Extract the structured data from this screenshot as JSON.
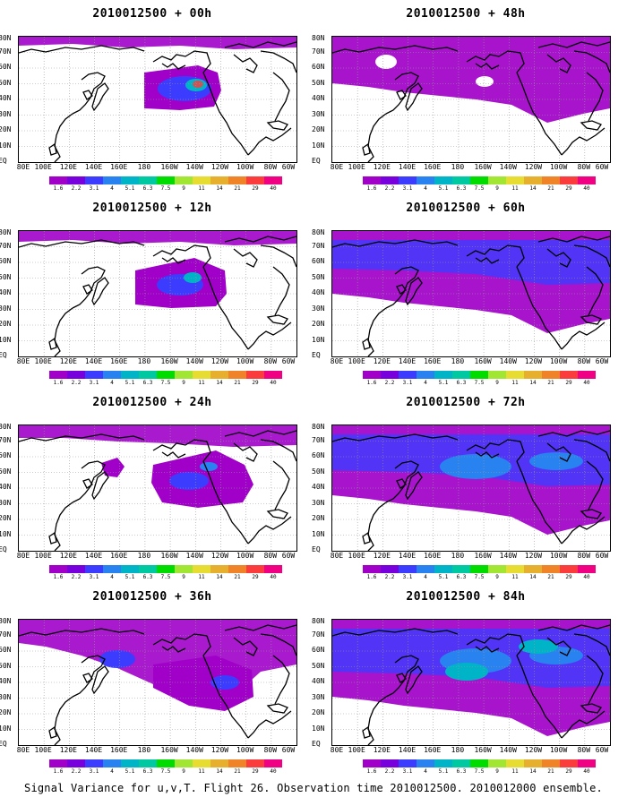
{
  "caption": "Signal Variance for u,v,T. Flight 26. Observation time 2010012500. 2010012000 ensemble.",
  "lat_labels": [
    "80N",
    "70N",
    "60N",
    "50N",
    "40N",
    "30N",
    "20N",
    "10N",
    "EQ"
  ],
  "lon_labels": [
    "80E",
    "100E",
    "120E",
    "140E",
    "160E",
    "180",
    "160W",
    "140W",
    "120W",
    "100W",
    "80W",
    "60W"
  ],
  "colorbar": {
    "labels": [
      "1.6",
      "2.2",
      "3.1",
      "4",
      "5.1",
      "6.3",
      "7.5",
      "9",
      "11",
      "14",
      "21",
      "29",
      "40"
    ],
    "colors": [
      "#a000c8",
      "#7800dc",
      "#3c3cff",
      "#2882f0",
      "#00b4c8",
      "#00c8a0",
      "#00dc00",
      "#a0e632",
      "#e6dc32",
      "#e6af2d",
      "#f08228",
      "#fa3c3c",
      "#f00082"
    ]
  },
  "panels": [
    {
      "title": "2010012500 + 00h",
      "lead_hours": 0
    },
    {
      "title": "2010012500 + 48h",
      "lead_hours": 48
    },
    {
      "title": "2010012500 + 12h",
      "lead_hours": 12
    },
    {
      "title": "2010012500 + 60h",
      "lead_hours": 60
    },
    {
      "title": "2010012500 + 24h",
      "lead_hours": 24
    },
    {
      "title": "2010012500 + 72h",
      "lead_hours": 72
    },
    {
      "title": "2010012500 + 36h",
      "lead_hours": 36
    },
    {
      "title": "2010012500 + 84h",
      "lead_hours": 84
    }
  ]
}
